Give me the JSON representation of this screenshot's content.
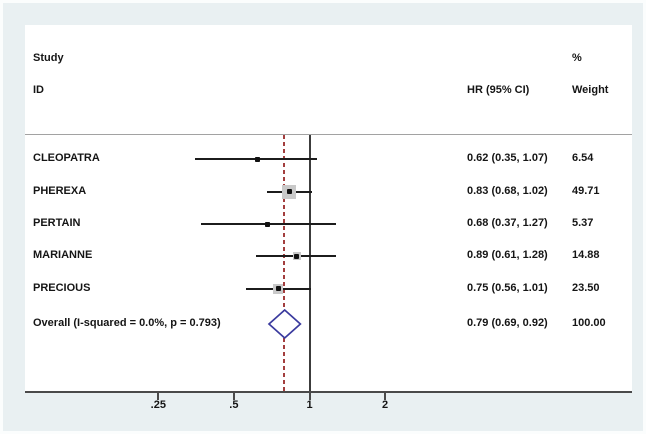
{
  "header": {
    "study_line1": "Study",
    "study_line2": "ID",
    "percent_symbol": "%",
    "hr_column": "HR (95% CI)",
    "weight_column": "Weight"
  },
  "colors": {
    "background": "#e9f0f2",
    "plot_background": "#ffffff",
    "axis": "#4a4a4a",
    "null_line": "#3c3c3c",
    "overall_dashed_line": "#a33e3e",
    "diamond_outline": "#3a3a9e",
    "weight_square": "#c9c9c9",
    "text": "#151515"
  },
  "chart_data": {
    "type": "forest",
    "x_axis": {
      "scale": "log",
      "ticks": [
        {
          "value": 0.25,
          "label": ".25"
        },
        {
          "value": 0.5,
          "label": ".5"
        },
        {
          "value": 1,
          "label": "1"
        },
        {
          "value": 2,
          "label": "2"
        }
      ],
      "null_line_value": 1,
      "overall_line_value": 0.79
    },
    "studies": [
      {
        "id": "CLEOPATRA",
        "hr": 0.62,
        "ci_low": 0.35,
        "ci_high": 1.07,
        "hr_label": "0.62 (0.35, 1.07)",
        "weight": 6.54,
        "weight_label": "6.54"
      },
      {
        "id": "PHEREXA",
        "hr": 0.83,
        "ci_low": 0.68,
        "ci_high": 1.02,
        "hr_label": "0.83 (0.68, 1.02)",
        "weight": 49.71,
        "weight_label": "49.71"
      },
      {
        "id": "PERTAIN",
        "hr": 0.68,
        "ci_low": 0.37,
        "ci_high": 1.27,
        "hr_label": "0.68 (0.37, 1.27)",
        "weight": 5.37,
        "weight_label": "5.37"
      },
      {
        "id": "MARIANNE",
        "hr": 0.89,
        "ci_low": 0.61,
        "ci_high": 1.28,
        "hr_label": "0.89 (0.61, 1.28)",
        "weight": 14.88,
        "weight_label": "14.88"
      },
      {
        "id": "PRECIOUS",
        "hr": 0.75,
        "ci_low": 0.56,
        "ci_high": 1.01,
        "hr_label": "0.75 (0.56, 1.01)",
        "weight": 23.5,
        "weight_label": "23.50"
      }
    ],
    "overall": {
      "label": "Overall  (I-squared = 0.0%, p = 0.793)",
      "hr": 0.79,
      "ci_low": 0.69,
      "ci_high": 0.92,
      "hr_label": "0.79 (0.69, 0.92)",
      "weight_label": "100.00"
    }
  }
}
